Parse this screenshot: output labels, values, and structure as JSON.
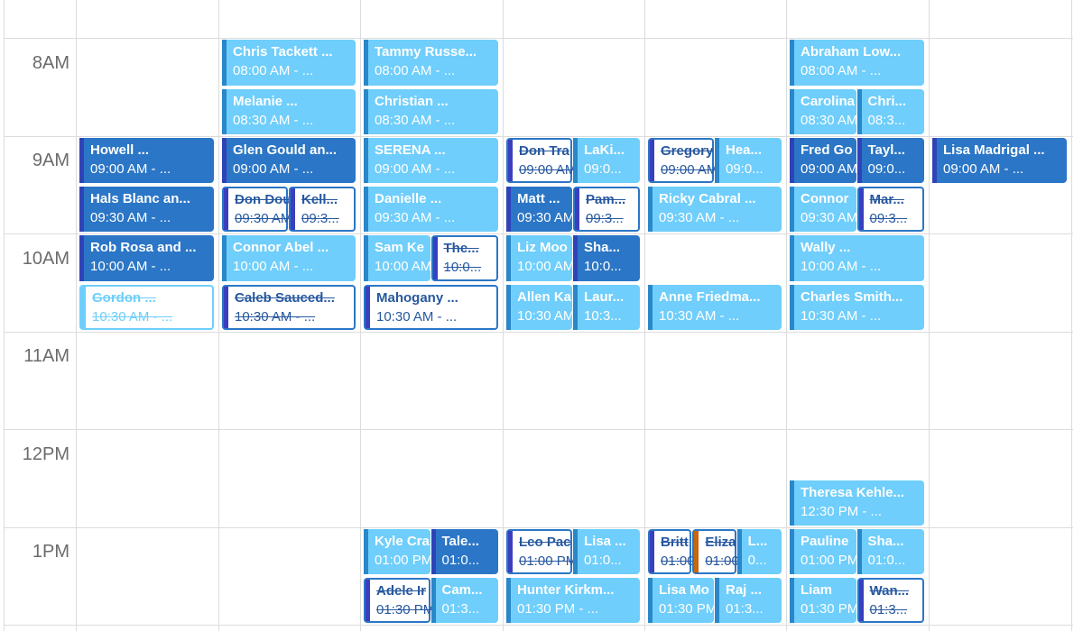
{
  "time_labels": [
    "8AM",
    "9AM",
    "10AM",
    "11AM",
    "12PM",
    "1PM"
  ],
  "events": [
    {
      "col": 1,
      "slot": 2,
      "sub": 0,
      "subs": 1,
      "style": "dark",
      "strike": false,
      "title": "Howell ...",
      "time": "09:00 AM - ..."
    },
    {
      "col": 1,
      "slot": 3,
      "sub": 0,
      "subs": 1,
      "style": "dark",
      "strike": false,
      "title": "Hals Blanc an...",
      "time": "09:30 AM - ..."
    },
    {
      "col": 1,
      "slot": 4,
      "sub": 0,
      "subs": 1,
      "style": "dark",
      "strike": false,
      "title": "Rob Rosa and ...",
      "time": "10:00 AM - ..."
    },
    {
      "col": 1,
      "slot": 5,
      "sub": 0,
      "subs": 1,
      "style": "outl",
      "strike": true,
      "title": "Gordon ...",
      "time": "10:30 AM - ..."
    },
    {
      "col": 2,
      "slot": 0,
      "sub": 0,
      "subs": 1,
      "style": "light",
      "strike": false,
      "title": "Chris Tackett ...",
      "time": "08:00 AM - ..."
    },
    {
      "col": 2,
      "slot": 1,
      "sub": 0,
      "subs": 1,
      "style": "light",
      "strike": false,
      "title": "Melanie ...",
      "time": "08:30 AM - ..."
    },
    {
      "col": 2,
      "slot": 2,
      "sub": 0,
      "subs": 1,
      "style": "dark",
      "strike": false,
      "title": "Glen Gould an...",
      "time": "09:00 AM - ..."
    },
    {
      "col": 2,
      "slot": 3,
      "sub": 0,
      "subs": 2,
      "style": "out",
      "strike": true,
      "title": "Don Dou",
      "time": "09:30 AM"
    },
    {
      "col": 2,
      "slot": 3,
      "sub": 1,
      "subs": 2,
      "style": "out",
      "strike": true,
      "title": "Kell...",
      "time": "09:3..."
    },
    {
      "col": 2,
      "slot": 4,
      "sub": 0,
      "subs": 1,
      "style": "light",
      "strike": false,
      "title": "Connor Abel ...",
      "time": "10:00 AM - ..."
    },
    {
      "col": 2,
      "slot": 5,
      "sub": 0,
      "subs": 1,
      "style": "out",
      "strike": true,
      "title": "Caleb Sauced...",
      "time": "10:30 AM - ..."
    },
    {
      "col": 3,
      "slot": 0,
      "sub": 0,
      "subs": 1,
      "style": "light",
      "strike": false,
      "title": "Tammy Russe...",
      "time": "08:00 AM - ..."
    },
    {
      "col": 3,
      "slot": 1,
      "sub": 0,
      "subs": 1,
      "style": "light",
      "strike": false,
      "title": "Christian ...",
      "time": "08:30 AM - ..."
    },
    {
      "col": 3,
      "slot": 2,
      "sub": 0,
      "subs": 1,
      "style": "light",
      "strike": false,
      "title": "SERENA ...",
      "time": "09:00 AM - ..."
    },
    {
      "col": 3,
      "slot": 3,
      "sub": 0,
      "subs": 1,
      "style": "light",
      "strike": false,
      "title": "Danielle ...",
      "time": "09:30 AM - ..."
    },
    {
      "col": 3,
      "slot": 4,
      "sub": 0,
      "subs": 2,
      "style": "light",
      "strike": false,
      "title": "Sam Ke",
      "time": "10:00 AM"
    },
    {
      "col": 3,
      "slot": 4,
      "sub": 1,
      "subs": 2,
      "style": "out",
      "strike": true,
      "title": "The...",
      "time": "10:0..."
    },
    {
      "col": 3,
      "slot": 5,
      "sub": 0,
      "subs": 1,
      "style": "out",
      "strike": false,
      "title": "Mahogany ...",
      "time": "10:30 AM - ..."
    },
    {
      "col": 3,
      "slot": 10,
      "sub": 0,
      "subs": 2,
      "style": "light",
      "strike": false,
      "title": "Kyle Cra",
      "time": "01:00 PM"
    },
    {
      "col": 3,
      "slot": 10,
      "sub": 1,
      "subs": 2,
      "style": "dark",
      "strike": false,
      "title": "Tale...",
      "time": "01:0..."
    },
    {
      "col": 3,
      "slot": 11,
      "sub": 0,
      "subs": 2,
      "style": "out",
      "strike": true,
      "title": "Adele Ir",
      "time": "01:30 PM"
    },
    {
      "col": 3,
      "slot": 11,
      "sub": 1,
      "subs": 2,
      "style": "light",
      "strike": false,
      "title": "Cam...",
      "time": "01:3..."
    },
    {
      "col": 4,
      "slot": 2,
      "sub": 0,
      "subs": 2,
      "style": "out",
      "strike": true,
      "title": "Don Tra",
      "time": "09:00 AM"
    },
    {
      "col": 4,
      "slot": 2,
      "sub": 1,
      "subs": 2,
      "style": "light",
      "strike": false,
      "title": "LaKi...",
      "time": "09:0..."
    },
    {
      "col": 4,
      "slot": 3,
      "sub": 0,
      "subs": 2,
      "style": "dark",
      "strike": false,
      "title": "Matt ...",
      "time": "09:30 AM"
    },
    {
      "col": 4,
      "slot": 3,
      "sub": 1,
      "subs": 2,
      "style": "out",
      "strike": true,
      "title": "Pam...",
      "time": "09:3..."
    },
    {
      "col": 4,
      "slot": 4,
      "sub": 0,
      "subs": 2,
      "style": "light",
      "strike": false,
      "title": "Liz Moo",
      "time": "10:00 AM"
    },
    {
      "col": 4,
      "slot": 4,
      "sub": 1,
      "subs": 2,
      "style": "dark",
      "strike": false,
      "title": "Sha...",
      "time": "10:0..."
    },
    {
      "col": 4,
      "slot": 5,
      "sub": 0,
      "subs": 2,
      "style": "light",
      "strike": false,
      "title": "Allen Ka",
      "time": "10:30 AM"
    },
    {
      "col": 4,
      "slot": 5,
      "sub": 1,
      "subs": 2,
      "style": "light",
      "strike": false,
      "title": "Laur...",
      "time": "10:3..."
    },
    {
      "col": 4,
      "slot": 10,
      "sub": 0,
      "subs": 2,
      "style": "out",
      "strike": true,
      "title": "Leo Pac",
      "time": "01:00 PM"
    },
    {
      "col": 4,
      "slot": 10,
      "sub": 1,
      "subs": 2,
      "style": "light",
      "strike": false,
      "title": "Lisa ...",
      "time": "01:0..."
    },
    {
      "col": 4,
      "slot": 11,
      "sub": 0,
      "subs": 1,
      "style": "light",
      "strike": false,
      "title": "Hunter Kirkm...",
      "time": "01:30 PM - ..."
    },
    {
      "col": 5,
      "slot": 2,
      "sub": 0,
      "subs": 2,
      "style": "out",
      "strike": true,
      "title": "Gregory",
      "time": "09:00 AM"
    },
    {
      "col": 5,
      "slot": 2,
      "sub": 1,
      "subs": 2,
      "style": "light",
      "strike": false,
      "title": "Hea...",
      "time": "09:0..."
    },
    {
      "col": 5,
      "slot": 3,
      "sub": 0,
      "subs": 1,
      "style": "light",
      "strike": false,
      "title": "Ricky Cabral ...",
      "time": "09:30 AM - ..."
    },
    {
      "col": 5,
      "slot": 5,
      "sub": 0,
      "subs": 1,
      "style": "light",
      "strike": false,
      "title": "Anne Friedma...",
      "time": "10:30 AM - ..."
    },
    {
      "col": 5,
      "slot": 10,
      "sub": 0,
      "subs": 3,
      "style": "out",
      "strike": true,
      "title": "Britt",
      "time": "01:00"
    },
    {
      "col": 5,
      "slot": 10,
      "sub": 1,
      "subs": 3,
      "style": "out orange",
      "strike": true,
      "title": "Eliza",
      "time": "01:00"
    },
    {
      "col": 5,
      "slot": 10,
      "sub": 2,
      "subs": 3,
      "style": "light",
      "strike": false,
      "title": "L...",
      "time": "0..."
    },
    {
      "col": 5,
      "slot": 11,
      "sub": 0,
      "subs": 2,
      "style": "light",
      "strike": false,
      "title": "Lisa Mo",
      "time": "01:30 PM"
    },
    {
      "col": 5,
      "slot": 11,
      "sub": 1,
      "subs": 2,
      "style": "light",
      "strike": false,
      "title": "Raj ...",
      "time": "01:3..."
    },
    {
      "col": 6,
      "slot": 0,
      "sub": 0,
      "subs": 1,
      "style": "light",
      "strike": false,
      "title": "Abraham Low...",
      "time": "08:00 AM - ..."
    },
    {
      "col": 6,
      "slot": 1,
      "sub": 0,
      "subs": 2,
      "style": "light",
      "strike": false,
      "title": "Carolina",
      "time": "08:30 AM"
    },
    {
      "col": 6,
      "slot": 1,
      "sub": 1,
      "subs": 2,
      "style": "light",
      "strike": false,
      "title": "Chri...",
      "time": "08:3..."
    },
    {
      "col": 6,
      "slot": 2,
      "sub": 0,
      "subs": 2,
      "style": "dark",
      "strike": false,
      "title": "Fred Go",
      "time": "09:00 AM"
    },
    {
      "col": 6,
      "slot": 2,
      "sub": 1,
      "subs": 2,
      "style": "dark",
      "strike": false,
      "title": "Tayl...",
      "time": "09:0..."
    },
    {
      "col": 6,
      "slot": 3,
      "sub": 0,
      "subs": 2,
      "style": "light",
      "strike": false,
      "title": "Connor",
      "time": "09:30 AM"
    },
    {
      "col": 6,
      "slot": 3,
      "sub": 1,
      "subs": 2,
      "style": "out",
      "strike": true,
      "title": "Mar...",
      "time": "09:3..."
    },
    {
      "col": 6,
      "slot": 4,
      "sub": 0,
      "subs": 1,
      "style": "light",
      "strike": false,
      "title": "Wally ...",
      "time": "10:00 AM - ..."
    },
    {
      "col": 6,
      "slot": 5,
      "sub": 0,
      "subs": 1,
      "style": "light",
      "strike": false,
      "title": "Charles Smith...",
      "time": "10:30 AM - ..."
    },
    {
      "col": 6,
      "slot": 9,
      "sub": 0,
      "subs": 1,
      "style": "light",
      "strike": false,
      "title": "Theresa Kehle...",
      "time": "12:30 PM - ..."
    },
    {
      "col": 6,
      "slot": 10,
      "sub": 0,
      "subs": 2,
      "style": "light",
      "strike": false,
      "title": "Pauline",
      "time": "01:00 PM"
    },
    {
      "col": 6,
      "slot": 10,
      "sub": 1,
      "subs": 2,
      "style": "light",
      "strike": false,
      "title": "Sha...",
      "time": "01:0..."
    },
    {
      "col": 6,
      "slot": 11,
      "sub": 0,
      "subs": 2,
      "style": "light",
      "strike": false,
      "title": "Liam",
      "time": "01:30 PM"
    },
    {
      "col": 6,
      "slot": 11,
      "sub": 1,
      "subs": 2,
      "style": "out",
      "strike": true,
      "title": "Wan...",
      "time": "01:3..."
    },
    {
      "col": 7,
      "slot": 2,
      "sub": 0,
      "subs": 1,
      "style": "dark",
      "strike": false,
      "title": "Lisa Madrigal ...",
      "time": "09:00 AM - ..."
    }
  ]
}
